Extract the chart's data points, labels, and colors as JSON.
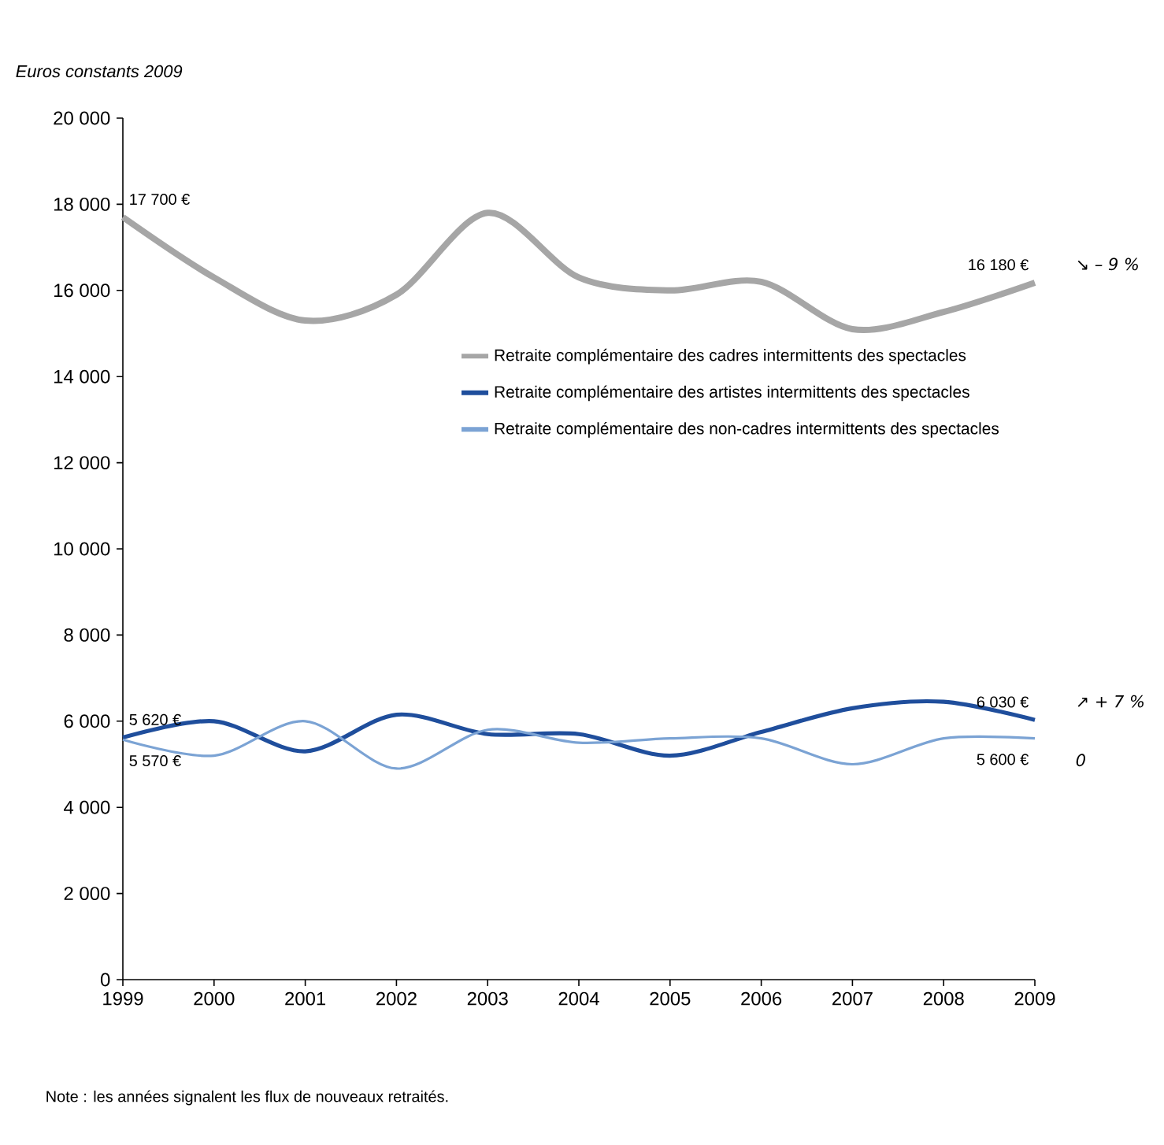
{
  "chart_data": {
    "type": "line",
    "ylabel": "Euros constants 2009",
    "x": [
      1999,
      2000,
      2001,
      2002,
      2003,
      2004,
      2005,
      2006,
      2007,
      2008,
      2009
    ],
    "xlim": [
      1999,
      2009
    ],
    "xticks": [
      1999,
      2000,
      2001,
      2002,
      2003,
      2004,
      2005,
      2006,
      2007,
      2008,
      2009
    ],
    "ylim": [
      0,
      20000
    ],
    "yticks": [
      {
        "value": 0,
        "label": "0"
      },
      {
        "value": 2000,
        "label": "2 000"
      },
      {
        "value": 4000,
        "label": "4 000"
      },
      {
        "value": 6000,
        "label": "6 000"
      },
      {
        "value": 8000,
        "label": "8 000"
      },
      {
        "value": 10000,
        "label": "10 000"
      },
      {
        "value": 12000,
        "label": "12 000"
      },
      {
        "value": 14000,
        "label": "14 000"
      },
      {
        "value": 16000,
        "label": "16 000"
      },
      {
        "value": 18000,
        "label": "18 000"
      },
      {
        "value": 20000,
        "label": "20 000"
      }
    ],
    "legend": "right",
    "series": [
      {
        "name": "Retraite complémentaire des cadres intermittents des spectacles",
        "color": "#a6a6a6",
        "values": [
          17700,
          16300,
          15300,
          15900,
          17800,
          16300,
          16000,
          16200,
          15100,
          15500,
          16180
        ],
        "value_labels": [
          "17 700 €",
          null,
          null,
          null,
          null,
          null,
          null,
          null,
          null,
          null,
          "16 180 €"
        ]
      },
      {
        "name": "Retraite complémentaire des artistes intermittents des spectacles",
        "color": "#1f4e9c",
        "values": [
          5620,
          6000,
          5300,
          6150,
          5700,
          5700,
          5200,
          5750,
          6300,
          6450,
          6030
        ],
        "value_labels": [
          "5 620 €",
          null,
          null,
          null,
          null,
          null,
          null,
          null,
          null,
          null,
          "6 030 €"
        ]
      },
      {
        "name": "Retraite complémentaire des non-cadres intermittents des spectacles",
        "color": "#7ba3d4",
        "values": [
          5570,
          5200,
          6000,
          4900,
          5800,
          5500,
          5600,
          5600,
          5000,
          5600,
          5600
        ],
        "value_labels": [
          "5 570 €",
          null,
          null,
          null,
          null,
          null,
          null,
          null,
          null,
          null,
          "5 600 €"
        ]
      }
    ],
    "annotations": [
      "↘ – 9 %",
      "↗ + 7 %",
      "0",
      "Note : les années signalent les flux de nouveaux retraités."
    ]
  }
}
